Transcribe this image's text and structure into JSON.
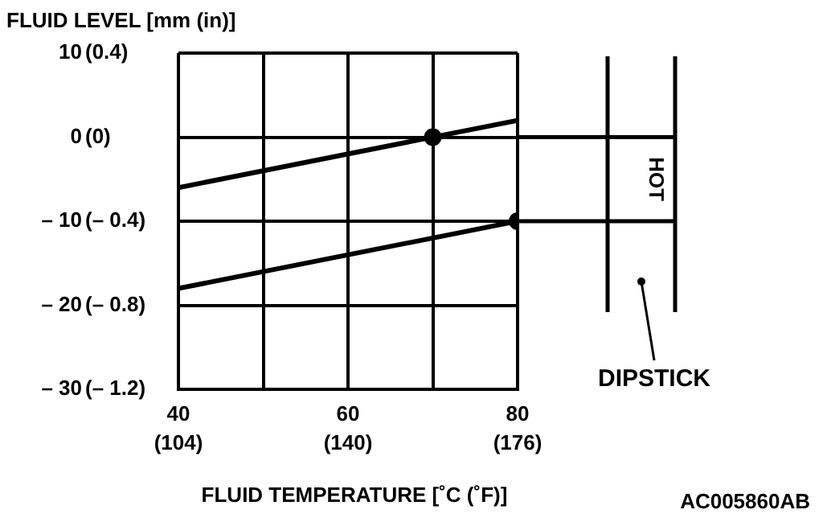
{
  "chart_data": {
    "type": "line",
    "title": "FLUID LEVEL [mm (in)]",
    "xlabel": "FLUID TEMPERATURE [˚C (˚F)]",
    "annotations": [
      "HOT",
      "DIPSTICK",
      "AC005860AB"
    ],
    "xlim": [
      40,
      80
    ],
    "xticks": [
      40,
      {
        "value": 50,
        "label": null
      },
      60,
      {
        "value": 70,
        "label": null
      },
      80
    ],
    "x2lim": [
      104,
      176
    ],
    "x2ticks": [
      {
        "value": 104,
        "label": "(104)"
      },
      {
        "value": 140,
        "label": "(140)"
      },
      {
        "value": 176,
        "label": "(176)"
      }
    ],
    "ylim": [
      -30,
      10
    ],
    "yticks": [
      10,
      0,
      {
        "value": -10,
        "label": "– 10"
      },
      {
        "value": -20,
        "label": "– 20"
      },
      {
        "value": -30,
        "label": "– 30"
      }
    ],
    "y2lim": [
      -1.2,
      0.4
    ],
    "y2ticks": [
      {
        "value": 0.4,
        "label": "(0.4)"
      },
      {
        "value": 0,
        "label": "(0)"
      },
      {
        "value": -0.4,
        "label": "(– 0.4)"
      },
      {
        "value": -0.8,
        "label": "(– 0.8)"
      },
      {
        "value": -1.2,
        "label": "(– 1.2)"
      }
    ],
    "grid": true,
    "legend": false,
    "line_style": "solid",
    "series": [
      {
        "color": "#000000",
        "x": [
          40,
          80
        ],
        "values": [
          -6,
          2
        ]
      },
      {
        "color": "#000000",
        "x": [
          40,
          80
        ],
        "values": [
          -18,
          -10
        ]
      },
      {
        "type": "scatter",
        "marker": "circle",
        "color": "#000000",
        "x": [
          70,
          80
        ],
        "values": [
          0,
          -10
        ]
      }
    ]
  }
}
